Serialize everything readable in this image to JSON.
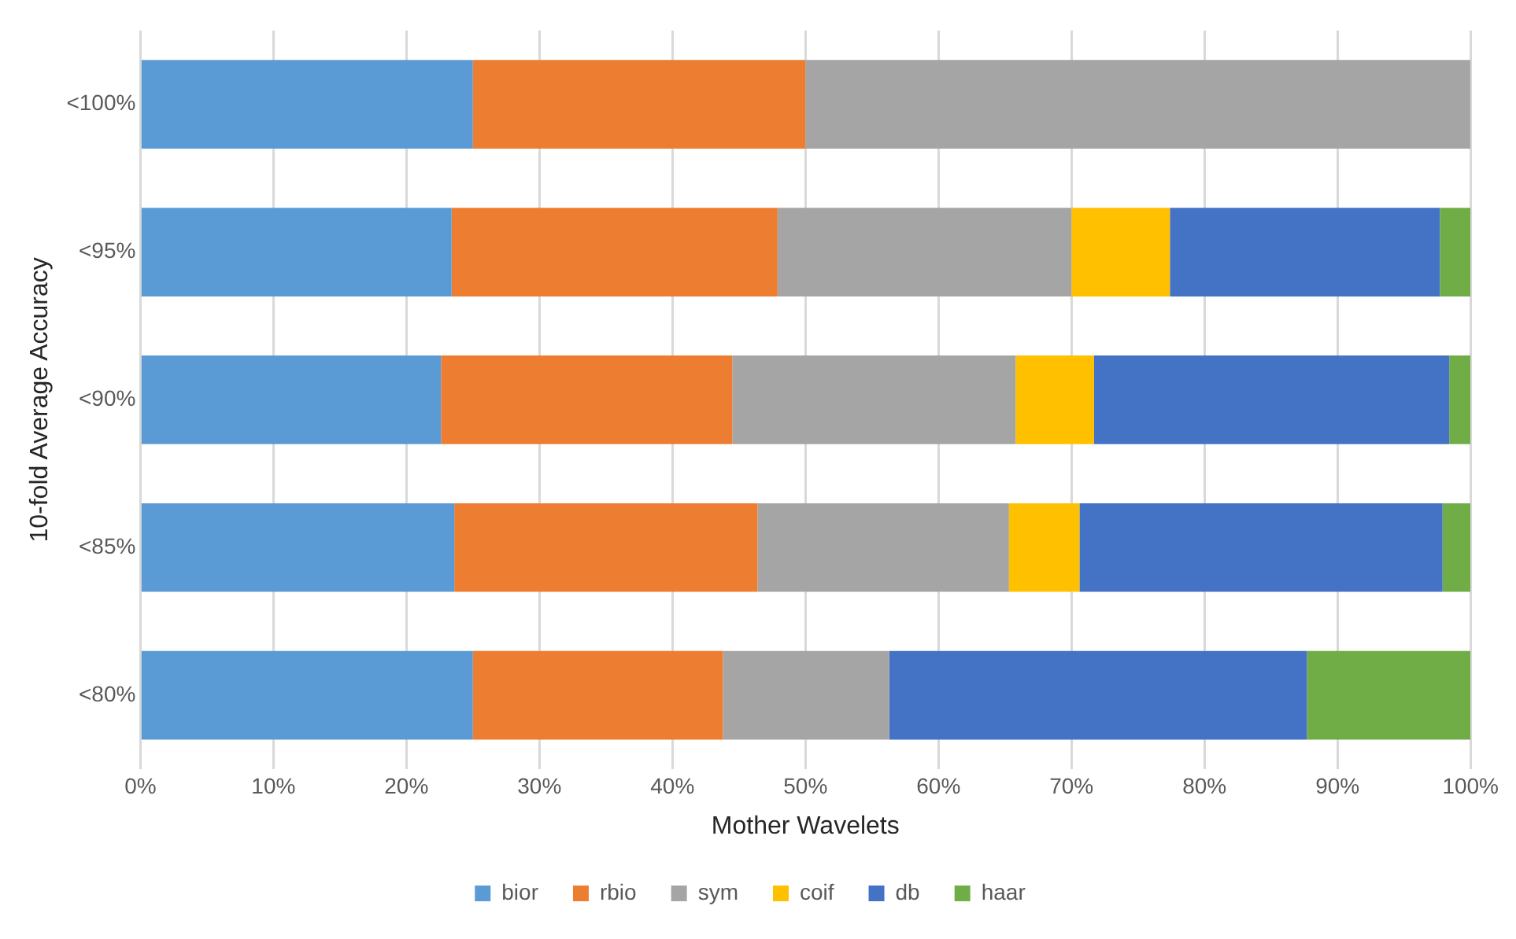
{
  "chart_data": {
    "type": "bar",
    "orientation": "horizontal",
    "stacked": true,
    "xlabel": "Mother Wavelets",
    "ylabel": "10-fold Average Accuracy",
    "categories": [
      "<100%",
      "<95%",
      "<90%",
      "<85%",
      "<80%"
    ],
    "series": [
      {
        "name": "bior",
        "color": "#5b9bd5",
        "values": [
          25,
          23.4,
          22.6,
          23.6,
          25
        ]
      },
      {
        "name": "rbio",
        "color": "#ed7d31",
        "values": [
          25,
          24.5,
          21.9,
          22.8,
          18.8
        ]
      },
      {
        "name": "sym",
        "color": "#a5a5a5",
        "values": [
          50,
          22.1,
          21.3,
          18.9,
          12.5
        ]
      },
      {
        "name": "coif",
        "color": "#ffc000",
        "values": [
          0,
          7.4,
          5.9,
          5.3,
          0
        ]
      },
      {
        "name": "db",
        "color": "#4472c4",
        "values": [
          0,
          20.3,
          26.7,
          27.3,
          31.4
        ]
      },
      {
        "name": "haar",
        "color": "#70ad47",
        "values": [
          0,
          2.3,
          1.6,
          2.1,
          12.3
        ]
      }
    ],
    "xlim": [
      0,
      100
    ],
    "xticks": [
      {
        "value": 0,
        "label": "0%"
      },
      {
        "value": 10,
        "label": "10%"
      },
      {
        "value": 20,
        "label": "20%"
      },
      {
        "value": 30,
        "label": "30%"
      },
      {
        "value": 40,
        "label": "40%"
      },
      {
        "value": 50,
        "label": "50%"
      },
      {
        "value": 60,
        "label": "60%"
      },
      {
        "value": 70,
        "label": "70%"
      },
      {
        "value": 80,
        "label": "80%"
      },
      {
        "value": 90,
        "label": "90%"
      },
      {
        "value": 100,
        "label": "100%"
      }
    ],
    "grid": "x",
    "legend": "bottom"
  }
}
